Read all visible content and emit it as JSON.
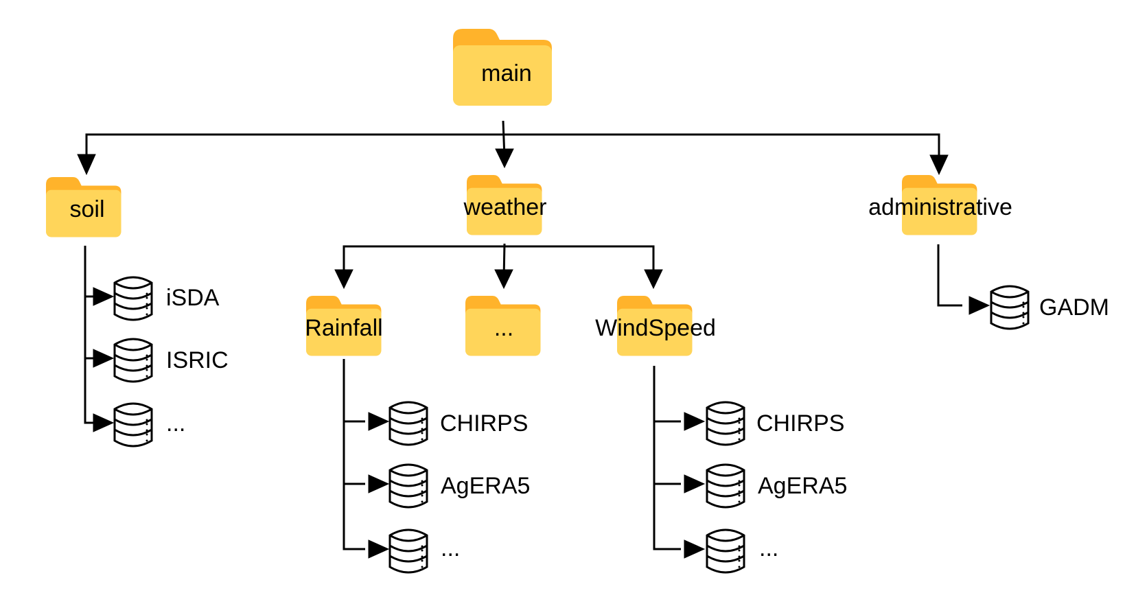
{
  "colors": {
    "folder_body": "#FFD55A",
    "folder_tab": "#FFB32B",
    "line": "#000000",
    "db_fill": "#ffffff",
    "db_stroke": "#000000"
  },
  "folders": {
    "main": "main",
    "soil": "soil",
    "weather": "weather",
    "administrative": "administrative",
    "rainfall": "Rainfall",
    "weather_more": "...",
    "windspeed": "WindSpeed"
  },
  "datasets": {
    "soil": [
      "iSDA",
      "ISRIC",
      "..."
    ],
    "rainfall": [
      "CHIRPS",
      "AgERA5",
      "..."
    ],
    "windspeed": [
      "CHIRPS",
      "AgERA5",
      "..."
    ],
    "administrative": [
      "GADM"
    ]
  },
  "icons": {
    "folder": "folder-icon",
    "database": "database-icon"
  }
}
